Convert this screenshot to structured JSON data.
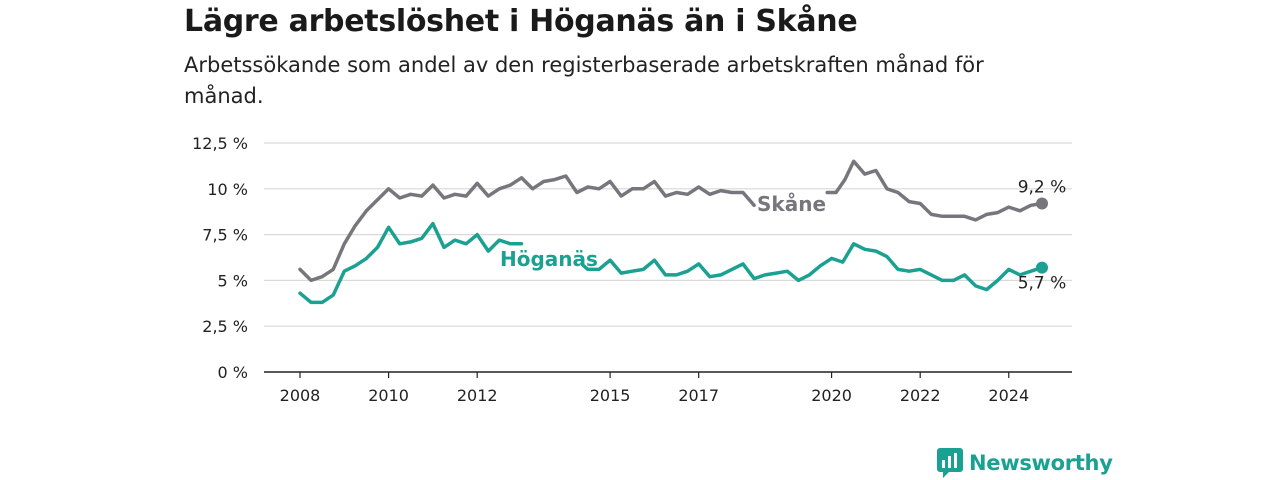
{
  "title": "Lägre arbetslöshet i Höganäs än i Skåne",
  "subtitle": "Arbetssökande som andel av den registerbaserade arbetskraften månad för månad.",
  "brand": "Newsworthy",
  "colors": {
    "skane": "#77767c",
    "hoganas": "#1aa191",
    "grid": "#d9d9d9",
    "axis": "#222222",
    "brand": "#1aa191"
  },
  "chart_data": {
    "type": "line",
    "title": "",
    "xlabel": "",
    "ylabel": "",
    "ylim": [
      0,
      12.5
    ],
    "xlim": [
      2007.5,
      2026.5
    ],
    "y_ticks": [
      0,
      2.5,
      5,
      7.5,
      10,
      12.5
    ],
    "y_tick_labels": [
      "0 %",
      "2,5 %",
      "5 %",
      "7,5 %",
      "10 %",
      "12,5 %"
    ],
    "x_ticks": [
      2008,
      2010,
      2012,
      2015,
      2017,
      2020,
      2022,
      2024
    ],
    "x_tick_labels": [
      "2008",
      "2010",
      "2012",
      "2015",
      "2017",
      "2020",
      "2022",
      "2024"
    ],
    "grid": true,
    "series": [
      {
        "name": "Skåne",
        "color": "#77767c",
        "end_label": "9,2 %",
        "x": [
          2008.0,
          2008.25,
          2008.5,
          2008.75,
          2009.0,
          2009.25,
          2009.5,
          2009.75,
          2010.0,
          2010.25,
          2010.5,
          2010.75,
          2011.0,
          2011.25,
          2011.5,
          2011.75,
          2012.0,
          2012.25,
          2012.5,
          2012.75,
          2013.0,
          2013.25,
          2013.5,
          2013.75,
          2014.0,
          2014.25,
          2014.5,
          2014.75,
          2015.0,
          2015.25,
          2015.5,
          2015.75,
          2016.0,
          2016.25,
          2016.5,
          2016.75,
          2017.0,
          2017.25,
          2017.5,
          2017.75,
          2018.0,
          2018.25,
          null,
          2019.9,
          2020.1,
          2020.3,
          2020.5,
          2020.75,
          2021.0,
          2021.25,
          2021.5,
          2021.75,
          2022.0,
          2022.25,
          2022.5,
          2022.75,
          2023.0,
          2023.25,
          2023.5,
          2023.75,
          2024.0,
          2024.25,
          2024.5,
          2024.75
        ],
        "y": [
          5.6,
          5.0,
          5.2,
          5.6,
          7.0,
          8.0,
          8.8,
          9.4,
          10.0,
          9.5,
          9.7,
          9.6,
          10.2,
          9.5,
          9.7,
          9.6,
          10.3,
          9.6,
          10.0,
          10.2,
          10.6,
          10.0,
          10.4,
          10.5,
          10.7,
          9.8,
          10.1,
          10.0,
          10.4,
          9.6,
          10.0,
          10.0,
          10.4,
          9.6,
          9.8,
          9.7,
          10.1,
          9.7,
          9.9,
          9.8,
          9.8,
          9.1,
          null,
          9.8,
          9.8,
          10.5,
          11.5,
          10.8,
          11.0,
          10.0,
          9.8,
          9.3,
          9.2,
          8.6,
          8.5,
          8.5,
          8.5,
          8.3,
          8.6,
          8.7,
          9.0,
          8.8,
          9.1,
          9.2
        ]
      },
      {
        "name": "Höganäs",
        "color": "#1aa191",
        "end_label": "5,7 %",
        "x": [
          2008.0,
          2008.25,
          2008.5,
          2008.75,
          2009.0,
          2009.25,
          2009.5,
          2009.75,
          2010.0,
          2010.25,
          2010.5,
          2010.75,
          2011.0,
          2011.25,
          2011.5,
          2011.75,
          2012.0,
          2012.25,
          2012.5,
          2012.75,
          2013.0,
          null,
          2014.4,
          2014.5,
          2014.75,
          2015.0,
          2015.25,
          2015.5,
          2015.75,
          2016.0,
          2016.25,
          2016.5,
          2016.75,
          2017.0,
          2017.25,
          2017.5,
          2017.75,
          2018.0,
          2018.25,
          2018.5,
          2018.75,
          2019.0,
          2019.25,
          2019.5,
          2019.75,
          2020.0,
          2020.25,
          2020.5,
          2020.75,
          2021.0,
          2021.25,
          2021.5,
          2021.75,
          2022.0,
          2022.25,
          2022.5,
          2022.75,
          2023.0,
          2023.25,
          2023.5,
          2023.75,
          2024.0,
          2024.25,
          2024.5,
          null,
          2024.5,
          2024.75
        ],
        "y": [
          4.3,
          3.8,
          3.8,
          4.2,
          5.5,
          5.8,
          6.2,
          6.8,
          7.9,
          7.0,
          7.1,
          7.3,
          8.1,
          6.8,
          7.2,
          7.0,
          7.5,
          6.6,
          7.2,
          7.0,
          7.0,
          null,
          5.8,
          5.6,
          5.6,
          6.1,
          5.4,
          5.5,
          5.6,
          6.1,
          5.3,
          5.3,
          5.5,
          5.9,
          5.2,
          5.3,
          5.6,
          5.9,
          5.1,
          5.3,
          5.4,
          5.5,
          5.0,
          5.3,
          5.8,
          6.2,
          6.0,
          7.0,
          6.7,
          6.6,
          6.3,
          5.6,
          5.5,
          5.6,
          5.3,
          5.0,
          5.0,
          5.3,
          4.7,
          4.5,
          5.0,
          5.6,
          5.3,
          5.5,
          null,
          5.5,
          5.7
        ]
      }
    ],
    "series_labels": [
      {
        "series": "Skåne",
        "text": "Skåne"
      },
      {
        "series": "Höganäs",
        "text": "Höganäs"
      }
    ]
  }
}
